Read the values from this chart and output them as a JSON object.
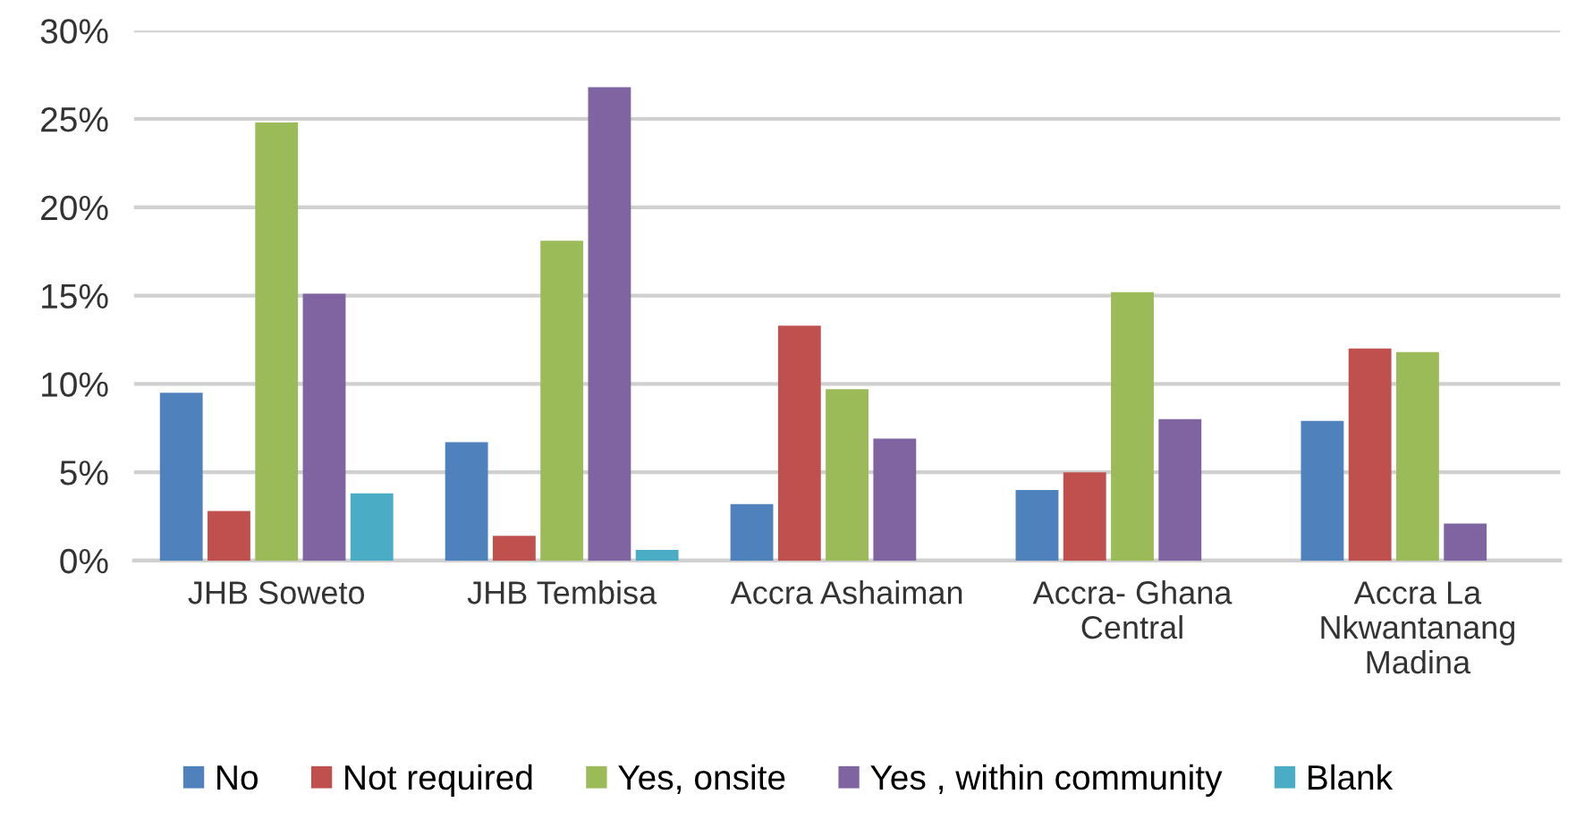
{
  "chart_data": {
    "type": "bar",
    "categories": [
      "JHB Soweto",
      "JHB Tembisa",
      "Accra Ashaiman",
      "Accra- Ghana\nCentral",
      "Accra La\nNkwantanang\nMadina"
    ],
    "series": [
      {
        "name": "No",
        "color": "#4f81bd",
        "values": [
          9.5,
          6.7,
          3.2,
          4.0,
          7.9
        ]
      },
      {
        "name": "Not required",
        "color": "#c0504d",
        "values": [
          2.8,
          1.4,
          13.3,
          5.0,
          12.0
        ]
      },
      {
        "name": "Yes, onsite",
        "color": "#9bbb59",
        "values": [
          24.8,
          18.1,
          9.7,
          15.2,
          11.8
        ]
      },
      {
        "name": "Yes , within community",
        "color": "#8064a2",
        "values": [
          15.1,
          26.8,
          6.9,
          8.0,
          2.1
        ]
      },
      {
        "name": "Blank",
        "color": "#4bacc6",
        "values": [
          3.8,
          0.6,
          0,
          0,
          0
        ]
      }
    ],
    "ylim": [
      0,
      30
    ],
    "yticks": [
      {
        "value": 0,
        "label": "0%"
      },
      {
        "value": 5,
        "label": "5%"
      },
      {
        "value": 10,
        "label": "10%"
      },
      {
        "value": 15,
        "label": "15%"
      },
      {
        "value": 20,
        "label": "20%"
      },
      {
        "value": 25,
        "label": "25%"
      },
      {
        "value": 30,
        "label": "30%"
      }
    ],
    "grid": "y",
    "legend": "bottom"
  }
}
